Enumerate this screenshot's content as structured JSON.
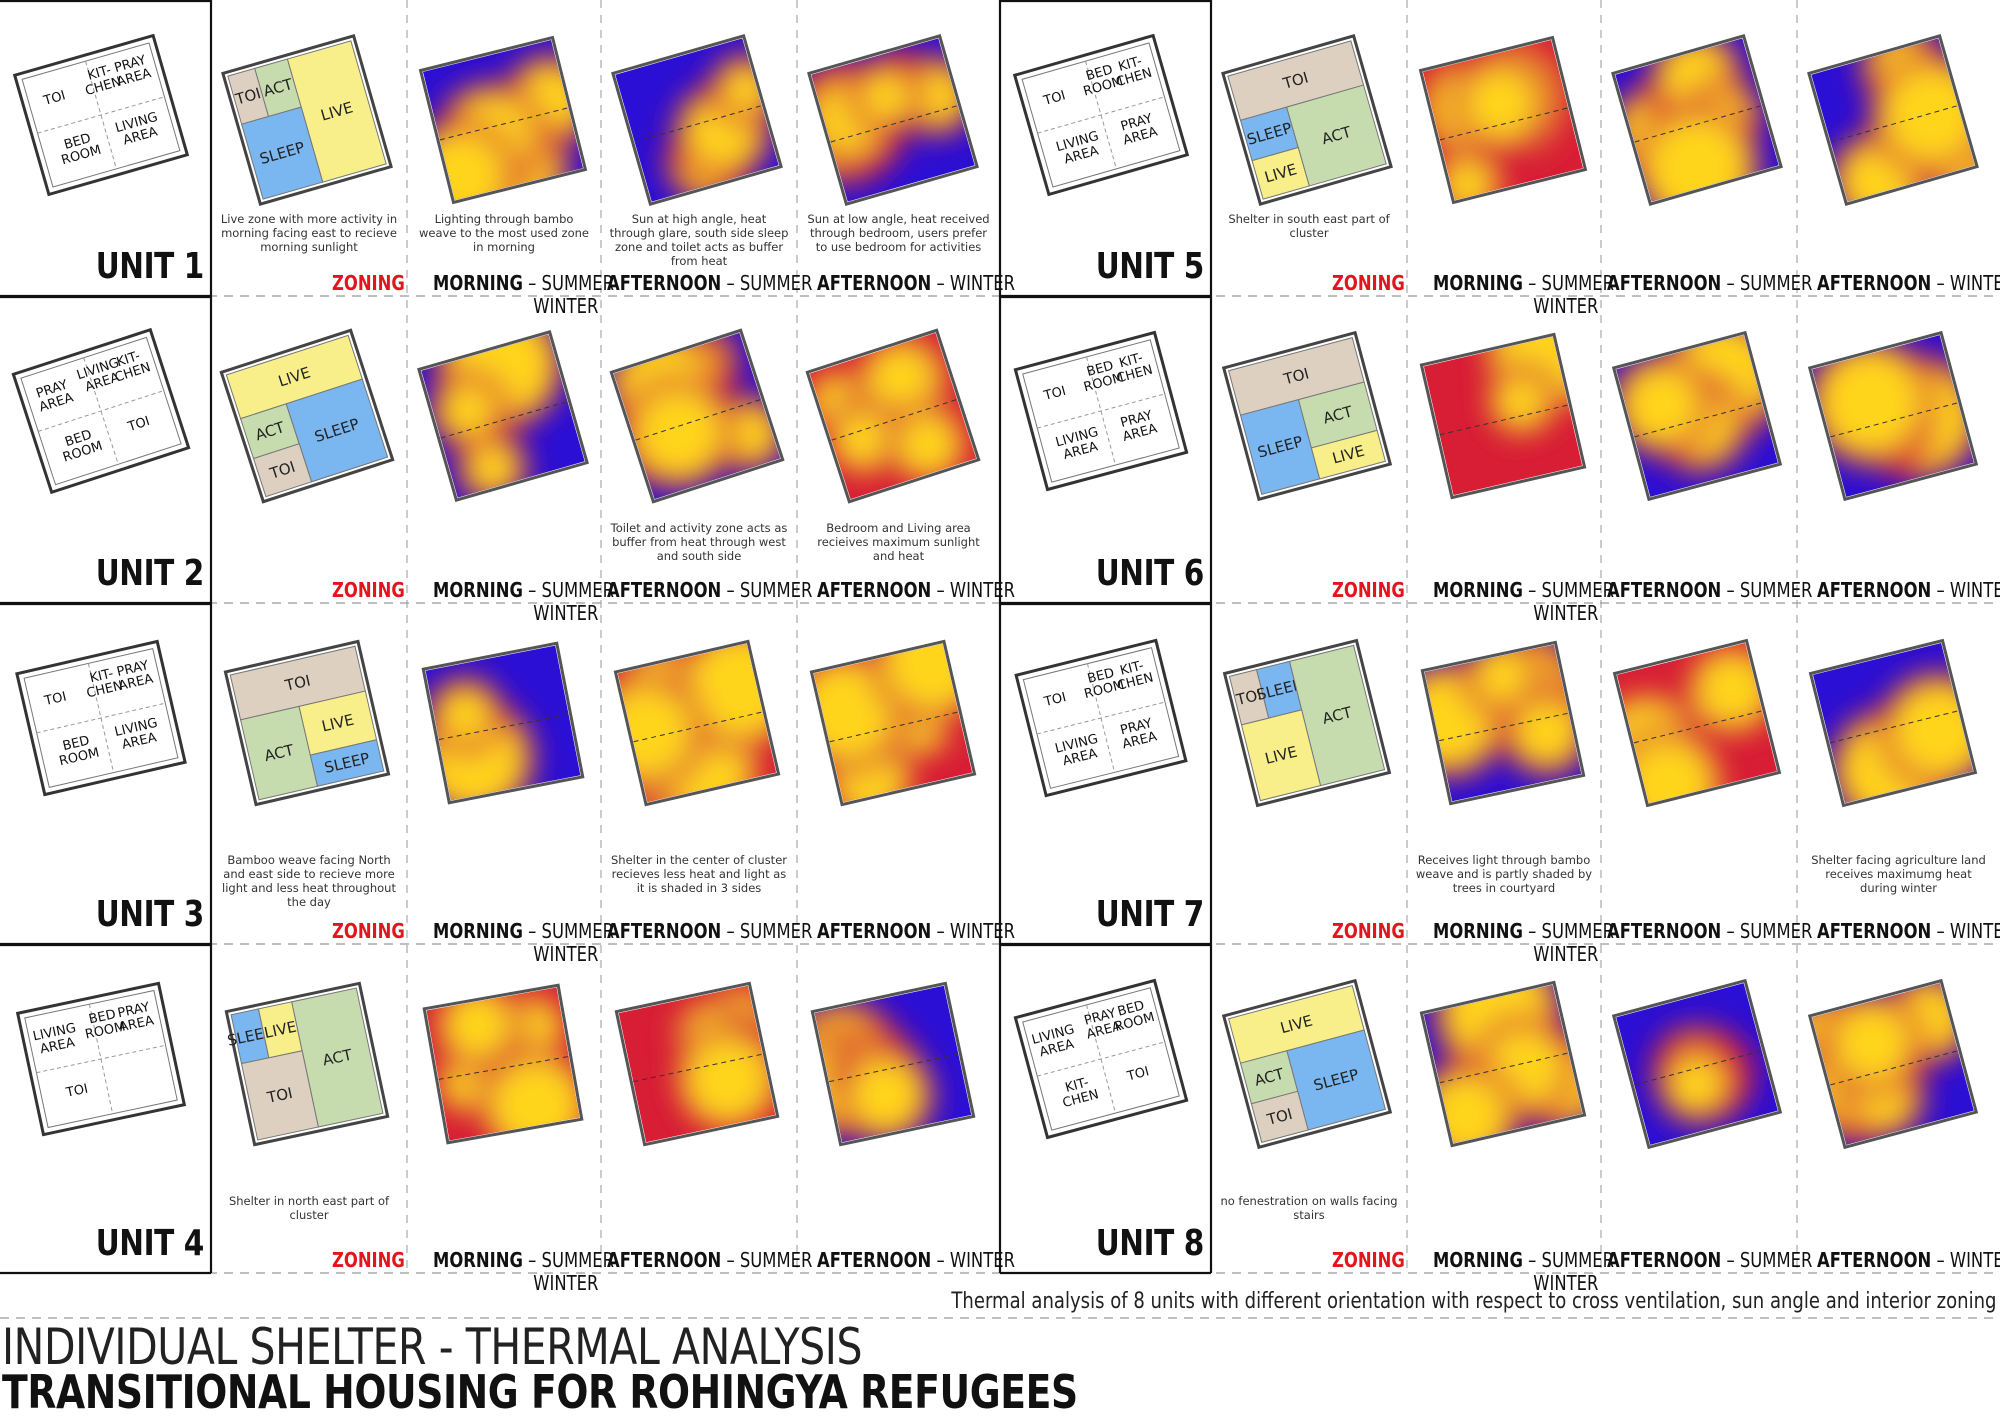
{
  "colors": {
    "zoning_label": "#e3141b",
    "live": "#f8ef8a",
    "sleep": "#7ab6f0",
    "act": "#c6dcae",
    "toi": "#ddd0c0",
    "heat_cold": "#2b0fd4",
    "heat_mid": "#d81e35",
    "heat_hot": "#ffd51e"
  },
  "column_labels": {
    "zoning": "ZONING",
    "morning_bold": "MORNING",
    "morning_rest": " – SUMMER",
    "morning_winter": "WINTER",
    "afternoon_summer_bold": "AFTERNOON",
    "afternoon_summer_rest": " – SUMMER",
    "afternoon_winter_bold": "AFTERNOON",
    "afternoon_winter_rest": " – WINTER"
  },
  "units": [
    {
      "label": "UNIT 1",
      "plan_rooms": [
        "TOI",
        "KIT-\nCHEN",
        "PRAY\nAREA",
        "BED\nROOM",
        "LIVING\nAREA"
      ],
      "zones": [
        "TOI",
        "ACT",
        "LIVE",
        "SLEEP"
      ],
      "captions": {
        "zoning": "Live zone with more activity in morning facing east to recieve morning sunlight",
        "morning": "Lighting through bambo weave to the most used zone in morning",
        "afternoon_summer": "Sun at high angle, heat through glare, south side sleep zone and toilet acts as buffer from heat",
        "afternoon_winter": "Sun at low angle, heat received through bedroom, users prefer to use bedroom for activities"
      }
    },
    {
      "label": "UNIT 2",
      "plan_rooms": [
        "PRAY\nAREA",
        "LIVING\nAREA",
        "KIT-\nCHEN",
        "BED\nROOM",
        "TOI"
      ],
      "zones": [
        "LIVE",
        "ACT",
        "SLEEP",
        "TOI"
      ],
      "captions": {
        "zoning": "",
        "morning": "",
        "afternoon_summer": "Toilet and activity zone acts as buffer from heat  through west and south side",
        "afternoon_winter": "Bedroom and Living area recieives maximum sunlight and heat"
      }
    },
    {
      "label": "UNIT 3",
      "plan_rooms": [
        "TOI",
        "KIT-\nCHEN",
        "PRAY\nAREA",
        "BED\nROOM",
        "LIVING\nAREA"
      ],
      "zones": [
        "TOI",
        "ACT",
        "LIVE",
        "SLEEP"
      ],
      "captions": {
        "zoning": "Bamboo weave facing North and east side to recieve more light and less heat throughout the day",
        "morning": "",
        "afternoon_summer": "Shelter in the center of cluster recieves less heat and light as it is shaded in 3 sides",
        "afternoon_winter": ""
      }
    },
    {
      "label": "UNIT 4",
      "plan_rooms": [
        "LIVING\nAREA",
        "BED\nROOM",
        "PRAY\nAREA",
        "TOI"
      ],
      "zones": [
        "SLEEP",
        "LIVE",
        "ACT",
        "TOI"
      ],
      "captions": {
        "zoning": "Shelter in north east part of cluster",
        "morning": "",
        "afternoon_summer": "",
        "afternoon_winter": ""
      }
    },
    {
      "label": "UNIT 5",
      "plan_rooms": [
        "TOI",
        "BED\nROOM",
        "KIT-\nCHEN",
        "LIVING\nAREA",
        "PRAY\nAREA"
      ],
      "zones": [
        "TOI",
        "SLEEP",
        "ACT",
        "LIVE"
      ],
      "captions": {
        "zoning": "Shelter in south east part of cluster",
        "morning": "",
        "afternoon_summer": "",
        "afternoon_winter": ""
      }
    },
    {
      "label": "UNIT 6",
      "plan_rooms": [
        "TOI",
        "BED\nROOM",
        "KIT-\nCHEN",
        "LIVING\nAREA",
        "PRAY\nAREA"
      ],
      "zones": [
        "TOI",
        "SLEEP",
        "ACT",
        "LIVE"
      ],
      "captions": {
        "zoning": "",
        "morning": "",
        "afternoon_summer": "",
        "afternoon_winter": ""
      }
    },
    {
      "label": "UNIT 7",
      "plan_rooms": [
        "TOI",
        "BED\nROOM",
        "KIT-\nCHEN",
        "LIVING\nAREA",
        "PRAY\nAREA"
      ],
      "zones": [
        "TOI",
        "SLEEP",
        "ACT",
        "LIVE"
      ],
      "captions": {
        "zoning": "",
        "morning": "Receives light through bambo weave and is partly shaded by trees in courtyard",
        "afternoon_summer": "",
        "afternoon_winter": "Shelter facing agriculture land receives maximumg heat during winter"
      }
    },
    {
      "label": "UNIT 8",
      "plan_rooms": [
        "LIVING\nAREA",
        "PRAY\nAREA",
        "BED\nROOM",
        "KIT-\nCHEN",
        "TOI"
      ],
      "zones": [
        "LIVE",
        "ACT",
        "SLEEP",
        "TOI"
      ],
      "captions": {
        "zoning": "no fenestration on walls facing stairs",
        "morning": "",
        "afternoon_summer": "",
        "afternoon_winter": ""
      }
    }
  ],
  "footer": {
    "note": "Thermal analysis of 8 units with different orientation with respect to cross ventilation, sun angle and interior zoning",
    "title_line1": "INDIVIDUAL SHELTER - THERMAL ANALYSIS",
    "title_line2": "TRANSITIONAL HOUSING FOR ROHINGYA REFUGEES"
  }
}
